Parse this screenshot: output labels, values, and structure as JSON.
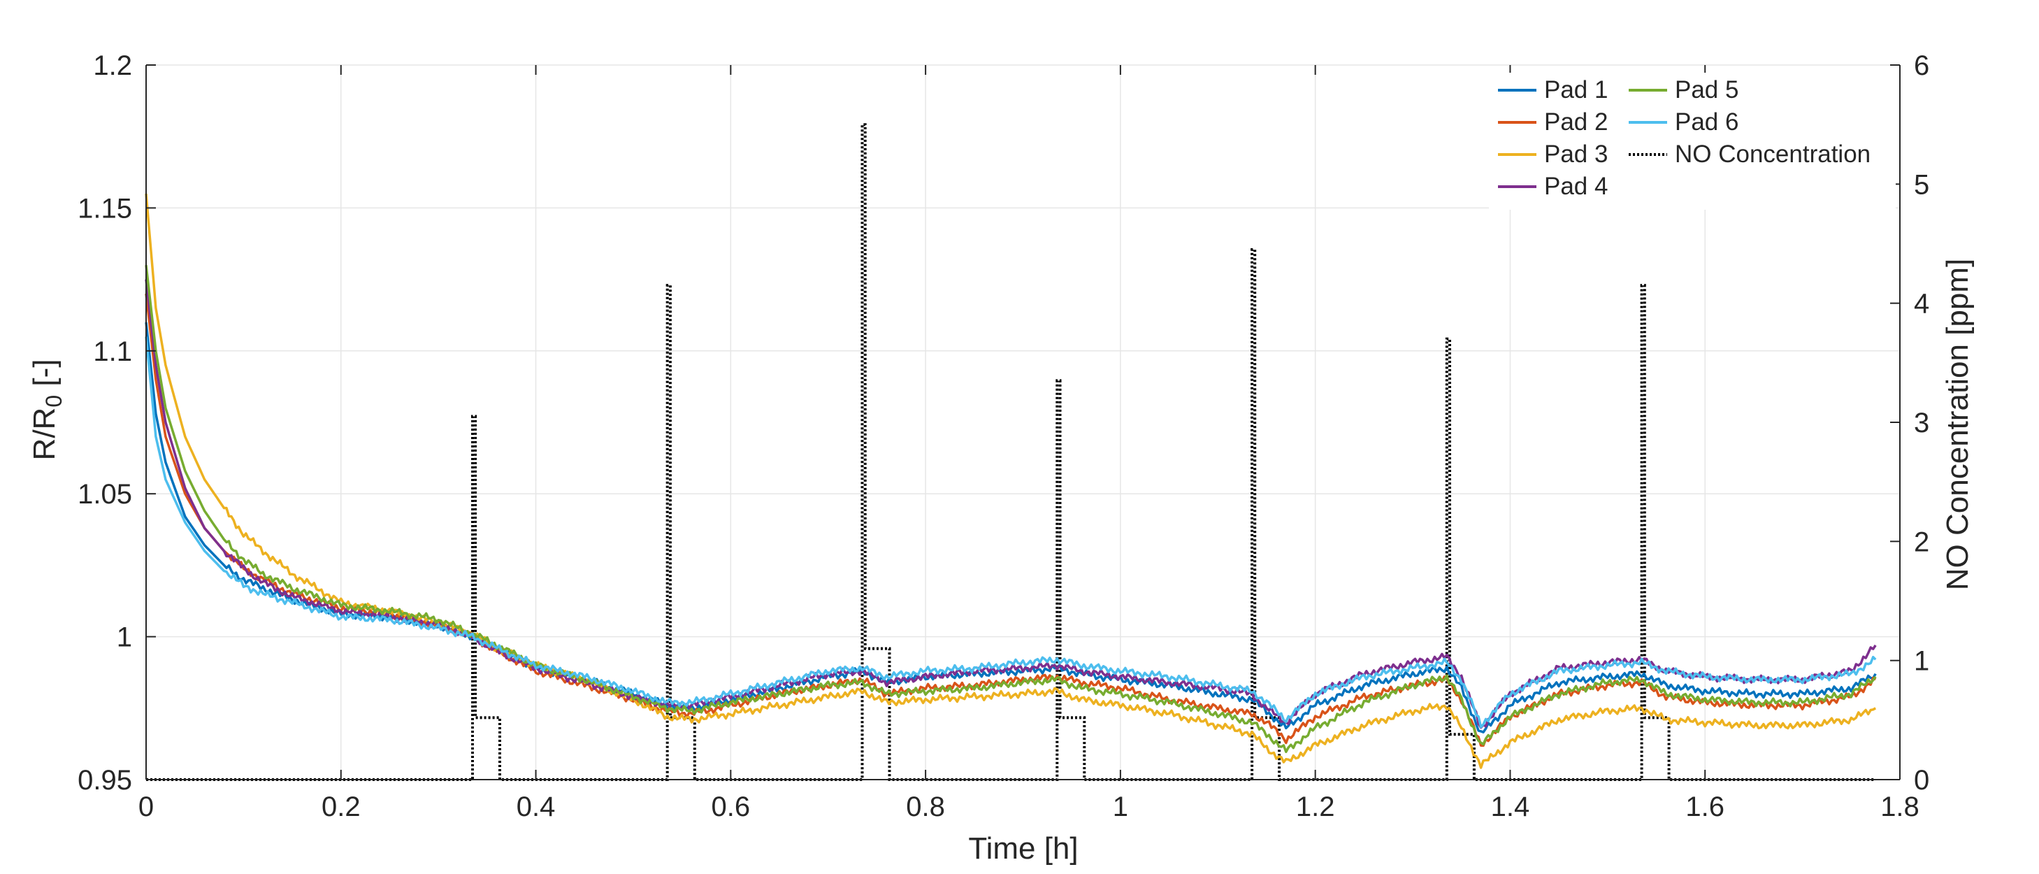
{
  "chart_data": {
    "type": "line",
    "title": "",
    "xlabel": "Time [h]",
    "ylabel_left": {
      "base": "R/R",
      "sub": "0",
      "suffix": " [-]"
    },
    "ylabel_right": "NO Concentration [ppm]",
    "xlim": [
      0,
      1.8
    ],
    "ylim_left": [
      0.95,
      1.2
    ],
    "ylim_right": [
      0,
      6
    ],
    "x_ticks": [
      {
        "v": 0,
        "label": "0"
      },
      {
        "v": 0.2,
        "label": "0.2"
      },
      {
        "v": 0.4,
        "label": "0.4"
      },
      {
        "v": 0.6,
        "label": "0.6"
      },
      {
        "v": 0.8,
        "label": "0.8"
      },
      {
        "v": 1.0,
        "label": "1"
      },
      {
        "v": 1.2,
        "label": "1.2"
      },
      {
        "v": 1.4,
        "label": "1.4"
      },
      {
        "v": 1.6,
        "label": "1.6"
      },
      {
        "v": 1.8,
        "label": "1.8"
      }
    ],
    "y_ticks_left": [
      {
        "v": 0.95,
        "label": "0.95"
      },
      {
        "v": 1.0,
        "label": "1"
      },
      {
        "v": 1.05,
        "label": "1.05"
      },
      {
        "v": 1.1,
        "label": "1.1"
      },
      {
        "v": 1.15,
        "label": "1.15"
      },
      {
        "v": 1.2,
        "label": "1.2"
      }
    ],
    "y_ticks_right": [
      {
        "v": 0,
        "label": "0"
      },
      {
        "v": 1,
        "label": "1"
      },
      {
        "v": 2,
        "label": "2"
      },
      {
        "v": 3,
        "label": "3"
      },
      {
        "v": 4,
        "label": "4"
      },
      {
        "v": 5,
        "label": "5"
      },
      {
        "v": 6,
        "label": "6"
      }
    ],
    "grid": true,
    "legend_position": "top-right",
    "x": [
      0,
      0.01,
      0.02,
      0.04,
      0.06,
      0.08,
      0.1,
      0.12,
      0.15,
      0.2,
      0.25,
      0.3,
      0.335,
      0.36,
      0.4,
      0.45,
      0.5,
      0.535,
      0.56,
      0.6,
      0.65,
      0.7,
      0.735,
      0.76,
      0.8,
      0.85,
      0.9,
      0.935,
      0.96,
      1.0,
      1.05,
      1.1,
      1.135,
      1.15,
      1.17,
      1.2,
      1.25,
      1.3,
      1.335,
      1.35,
      1.37,
      1.4,
      1.45,
      1.5,
      1.535,
      1.56,
      1.6,
      1.65,
      1.7,
      1.75,
      1.775
    ],
    "series": [
      {
        "name": "Pad 1",
        "axis": "left",
        "color": "#0072BD",
        "values": [
          1.11,
          1.078,
          1.061,
          1.042,
          1.032,
          1.025,
          1.02,
          1.017,
          1.013,
          1.008,
          1.007,
          1.004,
          1.0,
          0.996,
          0.989,
          0.985,
          0.98,
          0.976,
          0.975,
          0.978,
          0.982,
          0.986,
          0.988,
          0.984,
          0.986,
          0.987,
          0.988,
          0.989,
          0.987,
          0.985,
          0.983,
          0.98,
          0.978,
          0.974,
          0.968,
          0.976,
          0.983,
          0.987,
          0.989,
          0.982,
          0.966,
          0.976,
          0.984,
          0.986,
          0.987,
          0.983,
          0.981,
          0.98,
          0.98,
          0.982,
          0.987
        ]
      },
      {
        "name": "Pad 2",
        "axis": "left",
        "color": "#D95319",
        "values": [
          1.12,
          1.09,
          1.07,
          1.05,
          1.038,
          1.03,
          1.024,
          1.02,
          1.015,
          1.01,
          1.008,
          1.004,
          1.0,
          0.995,
          0.988,
          0.983,
          0.978,
          0.974,
          0.973,
          0.976,
          0.98,
          0.983,
          0.985,
          0.98,
          0.982,
          0.983,
          0.985,
          0.986,
          0.984,
          0.982,
          0.978,
          0.975,
          0.973,
          0.97,
          0.964,
          0.972,
          0.979,
          0.983,
          0.985,
          0.978,
          0.962,
          0.972,
          0.98,
          0.983,
          0.984,
          0.979,
          0.977,
          0.976,
          0.976,
          0.979,
          0.985
        ]
      },
      {
        "name": "Pad 3",
        "axis": "left",
        "color": "#EDB120",
        "values": [
          1.155,
          1.115,
          1.095,
          1.07,
          1.055,
          1.045,
          1.036,
          1.03,
          1.022,
          1.012,
          1.009,
          1.005,
          1.001,
          0.996,
          0.99,
          0.985,
          0.978,
          0.972,
          0.971,
          0.973,
          0.976,
          0.979,
          0.981,
          0.977,
          0.978,
          0.979,
          0.98,
          0.981,
          0.978,
          0.976,
          0.973,
          0.969,
          0.966,
          0.961,
          0.956,
          0.962,
          0.969,
          0.974,
          0.976,
          0.968,
          0.955,
          0.963,
          0.971,
          0.974,
          0.975,
          0.971,
          0.97,
          0.969,
          0.969,
          0.971,
          0.975
        ]
      },
      {
        "name": "Pad 4",
        "axis": "left",
        "color": "#7E2F8E",
        "values": [
          1.125,
          1.095,
          1.075,
          1.052,
          1.038,
          1.03,
          1.024,
          1.019,
          1.014,
          1.009,
          1.007,
          1.004,
          1.0,
          0.995,
          0.989,
          0.984,
          0.979,
          0.976,
          0.976,
          0.979,
          0.983,
          0.987,
          0.988,
          0.984,
          0.986,
          0.988,
          0.989,
          0.99,
          0.988,
          0.986,
          0.984,
          0.982,
          0.98,
          0.975,
          0.97,
          0.98,
          0.987,
          0.991,
          0.993,
          0.986,
          0.968,
          0.98,
          0.989,
          0.991,
          0.992,
          0.988,
          0.986,
          0.985,
          0.985,
          0.988,
          0.997
        ]
      },
      {
        "name": "Pad 5",
        "axis": "left",
        "color": "#77AC30",
        "values": [
          1.13,
          1.1,
          1.08,
          1.058,
          1.044,
          1.034,
          1.027,
          1.022,
          1.017,
          1.011,
          1.009,
          1.006,
          1.001,
          0.997,
          0.99,
          0.985,
          0.979,
          0.975,
          0.974,
          0.977,
          0.98,
          0.983,
          0.984,
          0.98,
          0.981,
          0.982,
          0.984,
          0.985,
          0.982,
          0.98,
          0.977,
          0.973,
          0.97,
          0.966,
          0.96,
          0.968,
          0.977,
          0.983,
          0.986,
          0.978,
          0.962,
          0.972,
          0.98,
          0.984,
          0.985,
          0.98,
          0.978,
          0.977,
          0.977,
          0.98,
          0.986
        ]
      },
      {
        "name": "Pad 6",
        "axis": "left",
        "color": "#4DBEEE",
        "values": [
          1.105,
          1.07,
          1.055,
          1.04,
          1.03,
          1.023,
          1.018,
          1.015,
          1.012,
          1.007,
          1.006,
          1.003,
          1.0,
          0.996,
          0.99,
          0.986,
          0.981,
          0.977,
          0.977,
          0.98,
          0.984,
          0.988,
          0.989,
          0.986,
          0.988,
          0.989,
          0.991,
          0.992,
          0.99,
          0.988,
          0.986,
          0.983,
          0.981,
          0.977,
          0.971,
          0.98,
          0.986,
          0.989,
          0.991,
          0.985,
          0.969,
          0.98,
          0.988,
          0.99,
          0.991,
          0.988,
          0.986,
          0.985,
          0.985,
          0.987,
          0.992
        ]
      }
    ],
    "no_concentration": {
      "name": "NO Concentration",
      "axis": "right",
      "color": "#000000",
      "dash": "dotted",
      "pulses": [
        {
          "t_on": 0.335,
          "t_step": 0.338,
          "t_mid": 0.338,
          "t_off": 0.363,
          "peak": 3.05,
          "plateau": 0.52
        },
        {
          "t_on": 0.535,
          "t_step": 0.538,
          "t_mid": 0.538,
          "t_off": 0.563,
          "peak": 4.15,
          "plateau": 0.52
        },
        {
          "t_on": 0.735,
          "t_step": 0.738,
          "t_mid": 0.738,
          "t_off": 0.763,
          "peak": 5.5,
          "plateau": 1.1
        },
        {
          "t_on": 0.935,
          "t_step": 0.938,
          "t_mid": 0.938,
          "t_off": 0.963,
          "peak": 3.35,
          "plateau": 0.52
        },
        {
          "t_on": 1.135,
          "t_step": 1.138,
          "t_mid": 1.138,
          "t_off": 1.163,
          "peak": 4.45,
          "plateau": 0.52
        },
        {
          "t_on": 1.335,
          "t_step": 1.338,
          "t_mid": 1.338,
          "t_off": 1.363,
          "peak": 3.7,
          "plateau": 0.38
        },
        {
          "t_on": 1.535,
          "t_step": 1.538,
          "t_mid": 1.538,
          "t_off": 1.563,
          "peak": 4.15,
          "plateau": 0.52
        }
      ],
      "t_end": 1.775
    }
  }
}
